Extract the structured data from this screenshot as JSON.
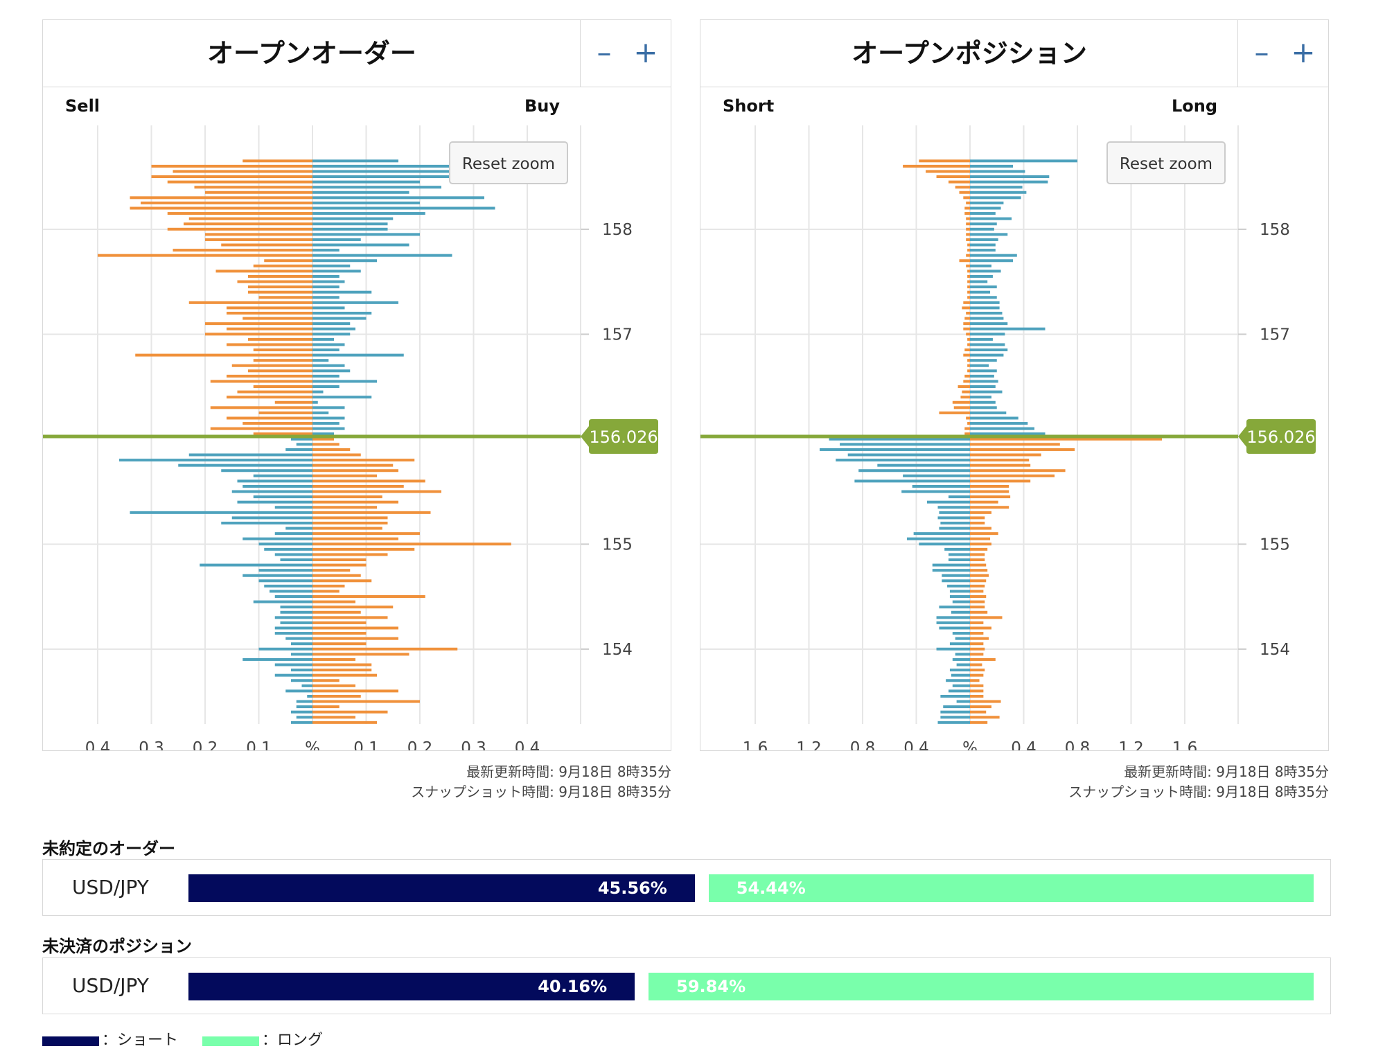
{
  "colors": {
    "order_left": "#f0913b",
    "order_right": "#4ea2bd",
    "price_line": "#86a83a",
    "bar_short": "#030a5c",
    "bar_long": "#79ffab"
  },
  "chart_data": [
    {
      "type": "bar",
      "title": "オープンオーダー",
      "left_label": "Sell",
      "right_label": "Buy",
      "reset_zoom": "Reset zoom",
      "current_price": 156.026,
      "current_price_label": "156.026",
      "x_ticks": [
        "0.4",
        "0.3",
        "0.2",
        "0.1",
        "%",
        "0.1",
        "0.2",
        "0.3",
        "0.4"
      ],
      "x_range": [
        -0.4,
        0.4
      ],
      "y_ticks": [
        158,
        157,
        155,
        154
      ],
      "y_range": [
        153.4,
        158.78
      ],
      "step": 0.05,
      "above": {
        "left": [
          0.11,
          0.19,
          0.13,
          0.16,
          0.1,
          0.19,
          0.07,
          0.16,
          0.14,
          0.11,
          0.19,
          0.16,
          0.12,
          0.15,
          0.11,
          0.33,
          0.11,
          0.16,
          0.12,
          0.2,
          0.16,
          0.2,
          0.13,
          0.16,
          0.16,
          0.23,
          0.1,
          0.12,
          0.12,
          0.14,
          0.12,
          0.18,
          0.11,
          0.09,
          0.4,
          0.26,
          0.17,
          0.2,
          0.2,
          0.27,
          0.24,
          0.23,
          0.27,
          0.34,
          0.32,
          0.34,
          0.2,
          0.22,
          0.27,
          0.3,
          0.26,
          0.3,
          0.13
        ],
        "right": [
          0.04,
          0.06,
          0.05,
          0.06,
          0.03,
          0.06,
          0.01,
          0.11,
          0.02,
          0.05,
          0.12,
          0.05,
          0.07,
          0.06,
          0.03,
          0.17,
          0.05,
          0.06,
          0.04,
          0.07,
          0.08,
          0.07,
          0.1,
          0.11,
          0.06,
          0.16,
          0.05,
          0.11,
          0.05,
          0.06,
          0.05,
          0.09,
          0.07,
          0.12,
          0.26,
          0.05,
          0.18,
          0.09,
          0.2,
          0.14,
          0.14,
          0.15,
          0.21,
          0.34,
          0.2,
          0.32,
          0.18,
          0.24,
          0.2,
          0.29,
          0.32,
          0.36,
          0.16
        ]
      },
      "below": {
        "left": [
          0.04,
          0.03,
          0.05,
          0.23,
          0.36,
          0.25,
          0.17,
          0.11,
          0.14,
          0.13,
          0.15,
          0.11,
          0.14,
          0.07,
          0.34,
          0.15,
          0.17,
          0.05,
          0.07,
          0.13,
          0.1,
          0.09,
          0.07,
          0.06,
          0.21,
          0.1,
          0.13,
          0.1,
          0.09,
          0.08,
          0.07,
          0.11,
          0.06,
          0.06,
          0.07,
          0.06,
          0.07,
          0.07,
          0.05,
          0.04,
          0.1,
          0.04,
          0.13,
          0.07,
          0.04,
          0.07,
          0.04,
          0.02,
          0.05,
          0.01,
          0.03,
          0.03,
          0.04,
          0.03,
          0.04
        ],
        "right": [
          0.04,
          0.05,
          0.07,
          0.09,
          0.19,
          0.15,
          0.16,
          0.12,
          0.21,
          0.17,
          0.24,
          0.13,
          0.16,
          0.12,
          0.22,
          0.14,
          0.14,
          0.13,
          0.2,
          0.16,
          0.37,
          0.19,
          0.14,
          0.1,
          0.1,
          0.07,
          0.09,
          0.11,
          0.06,
          0.05,
          0.21,
          0.08,
          0.15,
          0.09,
          0.14,
          0.1,
          0.16,
          0.1,
          0.16,
          0.1,
          0.27,
          0.18,
          0.08,
          0.11,
          0.11,
          0.12,
          0.05,
          0.08,
          0.16,
          0.09,
          0.2,
          0.05,
          0.14,
          0.08,
          0.12
        ]
      }
    },
    {
      "type": "bar",
      "title": "オープンポジション",
      "left_label": "Short",
      "right_label": "Long",
      "reset_zoom": "Reset zoom",
      "current_price": 156.026,
      "current_price_label": "156.026",
      "x_ticks": [
        "1.6",
        "1.2",
        "0.8",
        "0.4",
        "%",
        "0.4",
        "0.8",
        "1.2",
        "1.6"
      ],
      "x_range": [
        -1.6,
        1.6
      ],
      "y_ticks": [
        158,
        157,
        155,
        154
      ],
      "y_range": [
        153.4,
        158.78
      ],
      "step": 0.05,
      "above": {
        "left": [
          0.04,
          0.04,
          0.02,
          0.03,
          0.23,
          0.12,
          0.13,
          0.07,
          0.06,
          0.09,
          0.05,
          0.04,
          0.02,
          0.02,
          0.02,
          0.05,
          0.04,
          0.02,
          0.02,
          0.03,
          0.05,
          0.05,
          0.04,
          0.03,
          0.06,
          0.05,
          0.02,
          0.02,
          0.02,
          0.02,
          0.02,
          0.02,
          0.03,
          0.08,
          0.03,
          0.02,
          0.02,
          0.03,
          0.03,
          0.03,
          0.03,
          0.03,
          0.04,
          0.04,
          0.03,
          0.05,
          0.08,
          0.11,
          0.16,
          0.25,
          0.33,
          0.5,
          0.38
        ],
        "right": [
          0.56,
          0.48,
          0.43,
          0.36,
          0.27,
          0.2,
          0.19,
          0.16,
          0.24,
          0.19,
          0.21,
          0.18,
          0.2,
          0.14,
          0.2,
          0.25,
          0.28,
          0.26,
          0.17,
          0.26,
          0.56,
          0.28,
          0.25,
          0.24,
          0.22,
          0.22,
          0.2,
          0.15,
          0.2,
          0.13,
          0.17,
          0.23,
          0.16,
          0.32,
          0.35,
          0.19,
          0.19,
          0.21,
          0.28,
          0.18,
          0.2,
          0.31,
          0.19,
          0.23,
          0.25,
          0.38,
          0.42,
          0.39,
          0.58,
          0.59,
          0.41,
          0.32,
          0.8
        ]
      },
      "below": {
        "left": [
          1.05,
          0.97,
          1.12,
          0.91,
          1.0,
          0.69,
          0.83,
          0.5,
          0.86,
          0.43,
          0.51,
          0.16,
          0.32,
          0.24,
          0.23,
          0.24,
          0.22,
          0.23,
          0.42,
          0.47,
          0.38,
          0.19,
          0.16,
          0.16,
          0.28,
          0.28,
          0.21,
          0.21,
          0.17,
          0.15,
          0.15,
          0.13,
          0.23,
          0.14,
          0.25,
          0.25,
          0.23,
          0.13,
          0.11,
          0.15,
          0.25,
          0.11,
          0.13,
          0.1,
          0.15,
          0.14,
          0.18,
          0.13,
          0.16,
          0.22,
          0.1,
          0.2,
          0.22,
          0.22,
          0.24
        ],
        "right": [
          1.43,
          0.67,
          0.78,
          0.53,
          0.44,
          0.45,
          0.71,
          0.63,
          0.45,
          0.29,
          0.29,
          0.3,
          0.21,
          0.29,
          0.16,
          0.11,
          0.11,
          0.16,
          0.21,
          0.15,
          0.16,
          0.13,
          0.11,
          0.11,
          0.12,
          0.13,
          0.14,
          0.12,
          0.11,
          0.1,
          0.12,
          0.11,
          0.11,
          0.13,
          0.24,
          0.1,
          0.16,
          0.1,
          0.14,
          0.1,
          0.11,
          0.1,
          0.19,
          0.09,
          0.11,
          0.1,
          0.07,
          0.1,
          0.1,
          0.1,
          0.23,
          0.16,
          0.12,
          0.22,
          0.13
        ]
      }
    }
  ],
  "timestamps": [
    {
      "updated": "最新更新時間: 9月18日 8時35分",
      "snapshot": "スナップショット時間: 9月18日 8時35分"
    },
    {
      "updated": "最新更新時間: 9月18日 8時35分",
      "snapshot": "スナップショット時間: 9月18日 8時35分"
    }
  ],
  "ratios": {
    "orders": {
      "title": "未約定のオーダー",
      "pair": "USD/JPY",
      "short_pct": 45.56,
      "long_pct": 54.44,
      "short_label": "45.56%",
      "long_label": "54.44%"
    },
    "positions": {
      "title": "未決済のポジション",
      "pair": "USD/JPY",
      "short_pct": 40.16,
      "long_pct": 59.84,
      "short_label": "40.16%",
      "long_label": "59.84%"
    }
  },
  "legend": {
    "short": "：ショート",
    "long": "：ロング"
  }
}
